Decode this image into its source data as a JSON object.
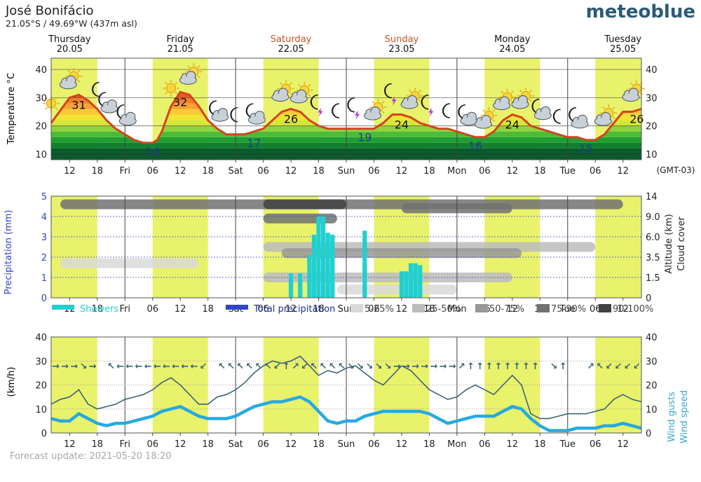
{
  "header": {
    "location": "José Bonifácio",
    "coordinates": "21.05°S / 49.69°W (437m asl)",
    "brand": "meteoblue",
    "forecast_update": "Forecast update: 2021-05-20 18:20",
    "timezone": "(GMT-03)"
  },
  "colors": {
    "daylight": "#e9f26b",
    "temperature_line": "#d2451e",
    "weekend_label": "#c7541f",
    "showers": "#20d0d0",
    "total_precipitation": "#2f46c8",
    "wind_speed": "#27a9e1",
    "wind_gusts": "#3d6475",
    "wind_axis_label": "#3aa7c8"
  },
  "days": [
    {
      "name": "Thursday",
      "date": "20.05",
      "weekend": false
    },
    {
      "name": "Friday",
      "date": "21.05",
      "weekend": false
    },
    {
      "name": "Saturday",
      "date": "22.05",
      "weekend": true
    },
    {
      "name": "Sunday",
      "date": "23.05",
      "weekend": true
    },
    {
      "name": "Monday",
      "date": "24.05",
      "weekend": false
    },
    {
      "name": "Tuesday",
      "date": "25.05",
      "weekend": false
    }
  ],
  "time_axis": {
    "start_hour": 8,
    "end_hour": 136,
    "daylight": [
      [
        12,
        18
      ],
      [
        30,
        36
      ],
      [
        54,
        60
      ],
      [
        78,
        84
      ],
      [
        102,
        108
      ],
      [
        126,
        136
      ]
    ],
    "daylight_hours": [
      [
        8,
        18
      ],
      [
        30,
        42
      ],
      [
        54,
        66
      ],
      [
        78,
        90
      ],
      [
        102,
        114
      ],
      [
        126,
        136
      ]
    ],
    "ticks": [
      {
        "h": 12,
        "label": "12"
      },
      {
        "h": 18,
        "label": "18"
      },
      {
        "h": 24,
        "label": "Fri"
      },
      {
        "h": 30,
        "label": "06"
      },
      {
        "h": 36,
        "label": "12"
      },
      {
        "h": 42,
        "label": "18"
      },
      {
        "h": 48,
        "label": "Sat"
      },
      {
        "h": 54,
        "label": "06"
      },
      {
        "h": 60,
        "label": "12"
      },
      {
        "h": 66,
        "label": "18"
      },
      {
        "h": 72,
        "label": "Sun"
      },
      {
        "h": 78,
        "label": "06"
      },
      {
        "h": 84,
        "label": "12"
      },
      {
        "h": 90,
        "label": "18"
      },
      {
        "h": 96,
        "label": "Mon"
      },
      {
        "h": 102,
        "label": "06"
      },
      {
        "h": 108,
        "label": "12"
      },
      {
        "h": 114,
        "label": "18"
      },
      {
        "h": 120,
        "label": "Tue"
      },
      {
        "h": 126,
        "label": "06"
      },
      {
        "h": 132,
        "label": "12"
      }
    ]
  },
  "chart_data": [
    {
      "type": "line",
      "ylabel": "Temperature °C",
      "ylim": [
        8,
        44
      ],
      "yticks": [
        10,
        20,
        30,
        40
      ],
      "x": [
        8,
        12,
        14,
        16,
        18,
        20,
        22,
        24,
        26,
        28,
        30,
        31,
        32,
        34,
        36,
        38,
        40,
        42,
        44,
        46,
        48,
        50,
        52,
        54,
        56,
        58,
        60,
        62,
        64,
        66,
        68,
        70,
        72,
        74,
        76,
        78,
        80,
        82,
        84,
        86,
        88,
        90,
        92,
        94,
        96,
        98,
        100,
        102,
        104,
        106,
        108,
        110,
        112,
        114,
        116,
        118,
        120,
        122,
        124,
        126,
        128,
        130,
        132,
        134,
        136
      ],
      "y": [
        21,
        30,
        31,
        29,
        26,
        22,
        19,
        17,
        15,
        14,
        14,
        15,
        18,
        27,
        32,
        31,
        27,
        22,
        19,
        17,
        17,
        17,
        18,
        19,
        22,
        25,
        26,
        25,
        22,
        20,
        19,
        19,
        19,
        19,
        19,
        19,
        21,
        24,
        24,
        23,
        21,
        20,
        19,
        19,
        18,
        17,
        16,
        16,
        18,
        22,
        24,
        23,
        20,
        19,
        18,
        17,
        16,
        16,
        15,
        15,
        17,
        21,
        25,
        25,
        26
      ],
      "labels": [
        {
          "h": 14,
          "v": 31,
          "kind": "max"
        },
        {
          "h": 30,
          "v": 14,
          "kind": "min"
        },
        {
          "h": 36,
          "v": 32,
          "kind": "max"
        },
        {
          "h": 52,
          "v": 17,
          "kind": "min"
        },
        {
          "h": 60,
          "v": 26,
          "kind": "max"
        },
        {
          "h": 76,
          "v": 19,
          "kind": "min"
        },
        {
          "h": 84,
          "v": 24,
          "kind": "max"
        },
        {
          "h": 100,
          "v": 16,
          "kind": "min"
        },
        {
          "h": 108,
          "v": 24,
          "kind": "max"
        },
        {
          "h": 124,
          "v": 15,
          "kind": "min"
        },
        {
          "h": 135,
          "v": 26,
          "kind": "max"
        }
      ],
      "weather_icons": [
        {
          "h": 8,
          "type": "sun"
        },
        {
          "h": 12,
          "type": "sun-cloud"
        },
        {
          "h": 18,
          "type": "moon"
        },
        {
          "h": 20,
          "type": "moon-cloud"
        },
        {
          "h": 24,
          "type": "moon-cloud"
        },
        {
          "h": 34,
          "type": "sun"
        },
        {
          "h": 38,
          "type": "sun-cloud"
        },
        {
          "h": 44,
          "type": "moon-cloud"
        },
        {
          "h": 48,
          "type": "moon"
        },
        {
          "h": 52,
          "type": "moon-cloud"
        },
        {
          "h": 58,
          "type": "sun-cloud"
        },
        {
          "h": 62,
          "type": "sun-cloud"
        },
        {
          "h": 66,
          "type": "thunder"
        },
        {
          "h": 70,
          "type": "moon"
        },
        {
          "h": 74,
          "type": "thunder"
        },
        {
          "h": 78,
          "type": "sun-cloud"
        },
        {
          "h": 82,
          "type": "thunder"
        },
        {
          "h": 86,
          "type": "sun-cloud"
        },
        {
          "h": 90,
          "type": "thunder"
        },
        {
          "h": 94,
          "type": "moon"
        },
        {
          "h": 98,
          "type": "moon-cloud"
        },
        {
          "h": 102,
          "type": "sun-cloud"
        },
        {
          "h": 106,
          "type": "sun-cloud"
        },
        {
          "h": 110,
          "type": "sun-cloud"
        },
        {
          "h": 114,
          "type": "moon-cloud"
        },
        {
          "h": 118,
          "type": "moon"
        },
        {
          "h": 122,
          "type": "moon-cloud"
        },
        {
          "h": 128,
          "type": "sun-cloud"
        },
        {
          "h": 134,
          "type": "sun-cloud"
        }
      ]
    },
    {
      "type": "bar",
      "ylabel": "Precipitation (mm)",
      "ylim": [
        0,
        5
      ],
      "yticks": [
        0,
        1,
        2,
        3,
        4,
        5
      ],
      "right_ticks": [
        "0",
        "1.5",
        "3.5",
        "6.0",
        "9.0",
        "14"
      ],
      "right_label_1": "Altitude (km)",
      "right_label_2": "Cloud cover",
      "series": [
        {
          "name": "Showers",
          "x": [
            60,
            62,
            64,
            65,
            66,
            67,
            68,
            69,
            76,
            84,
            85,
            86,
            87,
            88
          ],
          "values": [
            1.2,
            1.2,
            2.1,
            3.1,
            4.0,
            4.0,
            3.2,
            3.1,
            3.3,
            1.3,
            1.3,
            1.7,
            1.7,
            1.6
          ]
        },
        {
          "name": "Total precipitation",
          "x": [],
          "values": []
        }
      ],
      "legend": [
        "Showers",
        "Total precipitation",
        "5-25%",
        "25-50%",
        "50-75%",
        "75-90%",
        "90-100%"
      ],
      "cloud_cover_legend_colors": [
        "#d9d9d9",
        "#bcbcbc",
        "#989898",
        "#717171",
        "#424242"
      ],
      "cloud_cover_layers": [
        {
          "level": 4.6,
          "from": 10,
          "to": 132,
          "shade": 3
        },
        {
          "level": 4.6,
          "from": 54,
          "to": 72,
          "shade": 4
        },
        {
          "level": 4.4,
          "from": 84,
          "to": 108,
          "shade": 3
        },
        {
          "level": 3.9,
          "from": 54,
          "to": 70,
          "shade": 3
        },
        {
          "level": 2.5,
          "from": 54,
          "to": 126,
          "shade": 1
        },
        {
          "level": 2.2,
          "from": 58,
          "to": 110,
          "shade": 2
        },
        {
          "level": 1.7,
          "from": 10,
          "to": 40,
          "shade": 0
        },
        {
          "level": 1.0,
          "from": 54,
          "to": 108,
          "shade": 1
        },
        {
          "level": 0.4,
          "from": 70,
          "to": 96,
          "shade": 0
        }
      ]
    },
    {
      "type": "line",
      "ylabel": "(km/h)",
      "ylim": [
        0,
        40
      ],
      "yticks": [
        0,
        10,
        20,
        30,
        40
      ],
      "right_label_1": "Wind gusts",
      "right_label_2": "Wind speed",
      "series": [
        {
          "name": "Wind gusts",
          "x": [
            8,
            10,
            12,
            14,
            16,
            18,
            20,
            22,
            24,
            26,
            28,
            30,
            32,
            34,
            36,
            38,
            40,
            42,
            44,
            46,
            48,
            50,
            52,
            54,
            56,
            58,
            60,
            62,
            64,
            66,
            68,
            70,
            72,
            74,
            76,
            78,
            80,
            82,
            84,
            86,
            88,
            90,
            92,
            94,
            96,
            98,
            100,
            102,
            104,
            106,
            108,
            110,
            112,
            114,
            116,
            118,
            120,
            122,
            124,
            126,
            128,
            130,
            132,
            134,
            136
          ],
          "values": [
            12,
            14,
            15,
            18,
            12,
            10,
            11,
            12,
            14,
            15,
            16,
            18,
            21,
            23,
            20,
            16,
            12,
            12,
            15,
            16,
            18,
            21,
            25,
            28,
            30,
            29,
            30,
            32,
            28,
            24,
            26,
            25,
            27,
            28,
            25,
            22,
            20,
            24,
            28,
            26,
            22,
            18,
            16,
            14,
            15,
            18,
            20,
            18,
            16,
            20,
            24,
            20,
            8,
            6,
            6,
            7,
            8,
            8,
            8,
            9,
            10,
            14,
            16,
            14,
            13
          ]
        },
        {
          "name": "Wind speed",
          "x": [
            8,
            10,
            12,
            14,
            16,
            18,
            20,
            22,
            24,
            26,
            28,
            30,
            32,
            34,
            36,
            38,
            40,
            42,
            44,
            46,
            48,
            50,
            52,
            54,
            56,
            58,
            60,
            62,
            64,
            66,
            68,
            70,
            72,
            74,
            76,
            78,
            80,
            82,
            84,
            86,
            88,
            90,
            92,
            94,
            96,
            98,
            100,
            102,
            104,
            106,
            108,
            110,
            112,
            114,
            116,
            118,
            120,
            122,
            124,
            126,
            128,
            130,
            132,
            134,
            136
          ],
          "values": [
            6,
            5,
            5,
            8,
            6,
            4,
            3,
            4,
            4,
            5,
            6,
            7,
            9,
            10,
            11,
            9,
            7,
            6,
            6,
            6,
            7,
            9,
            11,
            12,
            13,
            13,
            14,
            15,
            13,
            9,
            5,
            4,
            5,
            5,
            7,
            8,
            9,
            9,
            9,
            9,
            9,
            8,
            6,
            4,
            5,
            6,
            7,
            7,
            7,
            9,
            11,
            10,
            6,
            3,
            1,
            1,
            1,
            2,
            2,
            2,
            3,
            3,
            4,
            3,
            2
          ]
        }
      ],
      "wind_arrows": [
        {
          "h": 9,
          "dir": "→"
        },
        {
          "h": 11,
          "dir": "→"
        },
        {
          "h": 13,
          "dir": "→"
        },
        {
          "h": 15,
          "dir": "↘"
        },
        {
          "h": 17,
          "dir": "→"
        },
        {
          "h": 21,
          "dir": "↖"
        },
        {
          "h": 23,
          "dir": "←"
        },
        {
          "h": 25,
          "dir": "←"
        },
        {
          "h": 27,
          "dir": "←"
        },
        {
          "h": 29,
          "dir": "←"
        },
        {
          "h": 31,
          "dir": "←"
        },
        {
          "h": 33,
          "dir": "←"
        },
        {
          "h": 35,
          "dir": "←"
        },
        {
          "h": 37,
          "dir": "←"
        },
        {
          "h": 39,
          "dir": "←"
        },
        {
          "h": 41,
          "dir": "↙"
        },
        {
          "h": 45,
          "dir": "↖"
        },
        {
          "h": 47,
          "dir": "↖"
        },
        {
          "h": 49,
          "dir": "↖"
        },
        {
          "h": 51,
          "dir": "↖"
        },
        {
          "h": 53,
          "dir": "↖"
        },
        {
          "h": 55,
          "dir": "↖"
        },
        {
          "h": 57,
          "dir": "↙"
        },
        {
          "h": 59,
          "dir": "↑"
        },
        {
          "h": 61,
          "dir": "↗"
        },
        {
          "h": 63,
          "dir": "↙"
        },
        {
          "h": 65,
          "dir": "↖"
        },
        {
          "h": 67,
          "dir": "↖"
        },
        {
          "h": 69,
          "dir": "↖"
        },
        {
          "h": 71,
          "dir": "↖"
        },
        {
          "h": 73,
          "dir": "↘"
        },
        {
          "h": 75,
          "dir": "↘"
        },
        {
          "h": 77,
          "dir": "↘"
        },
        {
          "h": 79,
          "dir": "↘"
        },
        {
          "h": 81,
          "dir": "↘"
        },
        {
          "h": 83,
          "dir": "→"
        },
        {
          "h": 85,
          "dir": "→"
        },
        {
          "h": 87,
          "dir": "→"
        },
        {
          "h": 89,
          "dir": "→"
        },
        {
          "h": 91,
          "dir": "→"
        },
        {
          "h": 93,
          "dir": "→"
        },
        {
          "h": 95,
          "dir": "→"
        },
        {
          "h": 97,
          "dir": "↗"
        },
        {
          "h": 99,
          "dir": "↑"
        },
        {
          "h": 101,
          "dir": "↑"
        },
        {
          "h": 103,
          "dir": "↑"
        },
        {
          "h": 105,
          "dir": "↑"
        },
        {
          "h": 107,
          "dir": "↑"
        },
        {
          "h": 109,
          "dir": "↑"
        },
        {
          "h": 111,
          "dir": "↑"
        },
        {
          "h": 113,
          "dir": "↑"
        },
        {
          "h": 117,
          "dir": "↘"
        },
        {
          "h": 119,
          "dir": "↑"
        },
        {
          "h": 125,
          "dir": "↗"
        },
        {
          "h": 127,
          "dir": "↖"
        },
        {
          "h": 129,
          "dir": "↙"
        },
        {
          "h": 131,
          "dir": "↙"
        },
        {
          "h": 133,
          "dir": "↙"
        },
        {
          "h": 135,
          "dir": "↙"
        }
      ]
    }
  ]
}
